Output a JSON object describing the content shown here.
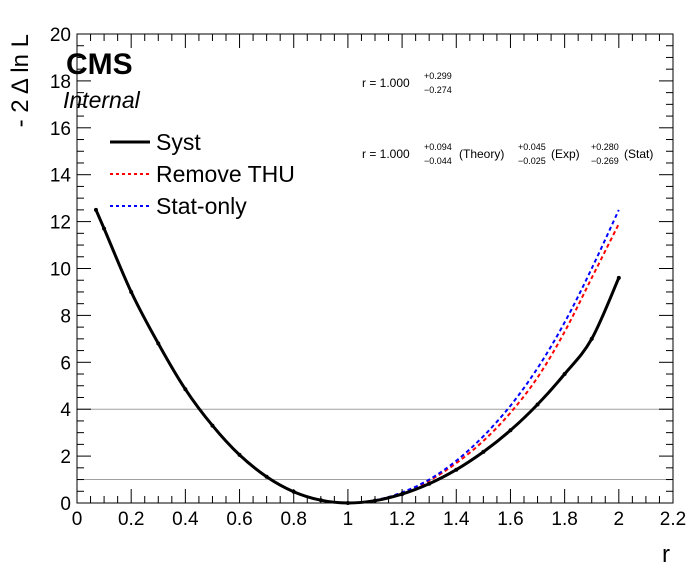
{
  "chart_data": {
    "type": "line",
    "xlabel": "r",
    "ylabel": "- 2 Δ ln L",
    "xlim": [
      0,
      2.2
    ],
    "ylim": [
      0,
      20
    ],
    "x_ticks": [
      "0",
      "0.2",
      "0.4",
      "0.6",
      "0.8",
      "1",
      "1.2",
      "1.4",
      "1.6",
      "1.8",
      "2",
      "2.2"
    ],
    "y_ticks": [
      "0",
      "2",
      "4",
      "6",
      "8",
      "10",
      "12",
      "14",
      "16",
      "18",
      "20"
    ],
    "reference_lines": [
      1,
      4
    ],
    "legend_placement": "upper-left",
    "series": [
      {
        "name": "Syst",
        "color": "#000000",
        "style": "solid",
        "x": [
          0.07,
          0.1,
          0.2,
          0.3,
          0.4,
          0.5,
          0.6,
          0.7,
          0.8,
          0.9,
          1.0,
          1.1,
          1.2,
          1.3,
          1.4,
          1.5,
          1.6,
          1.7,
          1.8,
          1.9,
          2.0
        ],
        "y": [
          12.5,
          11.7,
          9.0,
          6.8,
          4.85,
          3.3,
          2.05,
          1.12,
          0.48,
          0.12,
          0.0,
          0.1,
          0.38,
          0.82,
          1.42,
          2.18,
          3.1,
          4.2,
          5.5,
          7.0,
          9.6
        ]
      },
      {
        "name": "Remove THU",
        "color": "#ff0000",
        "style": "dotted",
        "x": [
          0.07,
          0.1,
          0.2,
          0.3,
          0.4,
          0.5,
          0.6,
          0.7,
          0.8,
          0.9,
          1.0,
          1.1,
          1.2,
          1.3,
          1.4,
          1.5,
          1.6,
          1.7,
          1.8,
          1.9,
          2.0
        ],
        "y": [
          12.5,
          11.7,
          9.0,
          6.8,
          4.85,
          3.3,
          2.05,
          1.12,
          0.48,
          0.12,
          0.0,
          0.11,
          0.42,
          0.95,
          1.7,
          2.65,
          3.85,
          5.35,
          7.3,
          9.6,
          11.9
        ]
      },
      {
        "name": "Stat-only",
        "color": "#0000ff",
        "style": "dotted",
        "x": [
          0.07,
          0.1,
          0.2,
          0.3,
          0.4,
          0.5,
          0.6,
          0.7,
          0.8,
          0.9,
          1.0,
          1.1,
          1.2,
          1.3,
          1.4,
          1.5,
          1.6,
          1.7,
          1.8,
          1.9,
          2.0
        ],
        "y": [
          12.5,
          11.7,
          9.0,
          6.8,
          4.85,
          3.3,
          2.05,
          1.12,
          0.48,
          0.12,
          0.0,
          0.12,
          0.45,
          1.0,
          1.8,
          2.85,
          4.15,
          5.75,
          7.7,
          10.0,
          12.5
        ]
      }
    ]
  },
  "labels": {
    "cms": "CMS",
    "internal": "Internal"
  },
  "annotations": {
    "total": {
      "prefix": "r = 1.000",
      "up": "+0.299",
      "down": "−0.274"
    },
    "breakdown": {
      "prefix": "r = 1.000",
      "theory_up": "+0.094",
      "theory_down": "−0.044",
      "theory_label": "(Theory)",
      "exp_up": "+0.045",
      "exp_down": "−0.025",
      "exp_label": "(Exp)",
      "stat_up": "+0.280",
      "stat_down": "−0.269",
      "stat_label": "(Stat)"
    }
  }
}
